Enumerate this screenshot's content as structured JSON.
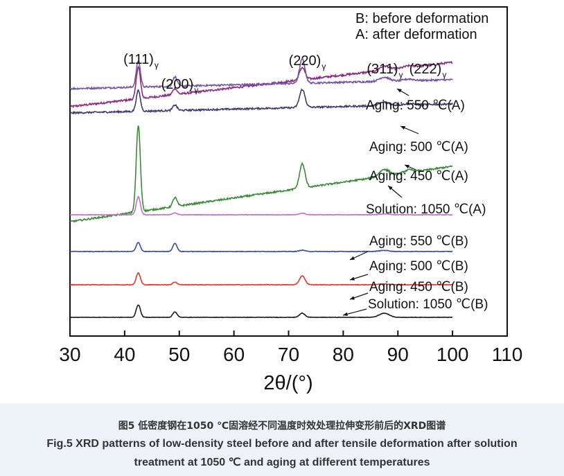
{
  "chart_data": {
    "type": "line",
    "xlabel": "2θ/(°)",
    "xlim": [
      30,
      110
    ],
    "xticks": [
      30,
      40,
      50,
      60,
      70,
      80,
      90,
      100,
      110
    ],
    "yticks": [],
    "ylabel": "",
    "grid": false,
    "legend": {
      "position": "top-right",
      "lines": [
        "B: before deformation",
        "A: after deformation"
      ]
    },
    "peaks": [
      {
        "hkl": "(111)",
        "sub": "γ",
        "x": 42.5
      },
      {
        "hkl": "(200)",
        "sub": "γ",
        "x": 49.2
      },
      {
        "hkl": "(220)",
        "sub": "γ",
        "x": 72.5
      },
      {
        "hkl": "(311)",
        "sub": "γ",
        "x": 87.5
      },
      {
        "hkl": "(222)",
        "sub": "γ",
        "x": 92.0
      }
    ],
    "series": [
      {
        "name": "Aging: 550 ℃(A)",
        "color": "#8b2a7e",
        "baseline": [
          0.12,
          0.44
        ],
        "noise": 0.007,
        "peaks": [
          [
            42.5,
            0.23
          ],
          [
            49.2,
            0.045
          ],
          [
            72.5,
            0.088
          ],
          [
            87.5,
            0.03
          ],
          [
            92.0,
            0.012
          ]
        ]
      },
      {
        "name": "Aging: 500 ℃(A)",
        "color": "#7454a8",
        "baseline": [
          0.39,
          0.455
        ],
        "noise": 0.006,
        "peaks": [
          [
            42.5,
            0.19
          ],
          [
            49.2,
            0.068
          ],
          [
            72.5,
            0.175
          ],
          [
            87.5,
            0.03
          ],
          [
            92.0,
            0.012
          ]
        ]
      },
      {
        "name": "Aging: 450 ℃(A)",
        "color": "#3d3a6e",
        "baseline": [
          0.51,
          0.575
        ],
        "noise": 0.006,
        "peaks": [
          [
            42.5,
            0.15
          ],
          [
            49.2,
            0.04
          ],
          [
            72.5,
            0.13
          ],
          [
            87.5,
            0.024
          ],
          [
            92.0,
            0.01
          ]
        ]
      },
      {
        "name": "Solution: 1050 ℃(A)",
        "color": "#3a8a38",
        "baseline": [
          0.0,
          0.4
        ],
        "noise": 0.006,
        "peaks": [
          [
            42.5,
            0.62
          ],
          [
            49.2,
            0.065
          ],
          [
            72.5,
            0.175
          ],
          [
            87.5,
            0.05
          ],
          [
            92.0,
            0.02
          ]
        ]
      },
      {
        "name": "Aging: 550 ℃(B)",
        "color": "#c070c0",
        "baseline": [
          0.34,
          0.34
        ],
        "noise": 0.002,
        "peaks": [
          [
            42.5,
            0.13
          ],
          [
            49.2,
            0.015
          ],
          [
            72.5,
            0.012
          ],
          [
            87.5,
            0.006
          ]
        ]
      },
      {
        "name": "Aging: 500 ℃(B)",
        "color": "#3b4a9c",
        "baseline": [
          0.21,
          0.21
        ],
        "noise": 0.002,
        "peaks": [
          [
            42.5,
            0.065
          ],
          [
            49.2,
            0.06
          ],
          [
            72.5,
            0.01
          ],
          [
            87.5,
            0.008
          ]
        ]
      },
      {
        "name": "Aging: 450 ℃(B)",
        "color": "#e0352b",
        "baseline": [
          0.11,
          0.11
        ],
        "noise": 0.002,
        "peaks": [
          [
            42.5,
            0.085
          ],
          [
            49.2,
            0.02
          ],
          [
            72.5,
            0.065
          ],
          [
            87.5,
            0.006
          ]
        ]
      },
      {
        "name": "Solution: 1050 ℃(B)",
        "color": "#1a1a1a",
        "baseline": [
          0.0,
          0.0
        ],
        "noise": 0.0015,
        "peaks": [
          [
            42.5,
            0.09
          ],
          [
            49.2,
            0.04
          ],
          [
            72.5,
            0.03
          ],
          [
            87.5,
            0.03
          ]
        ]
      }
    ]
  },
  "caption": {
    "zh": "图5 低密度钢在1050 ℃固溶经不同温度时效处理拉伸变形前后的XRD图谱",
    "en_line1": "Fig.5 XRD patterns of low-density steel before and after tensile deformation after solution",
    "en_line2": "treatment at 1050 ℃ and aging at different temperatures"
  }
}
